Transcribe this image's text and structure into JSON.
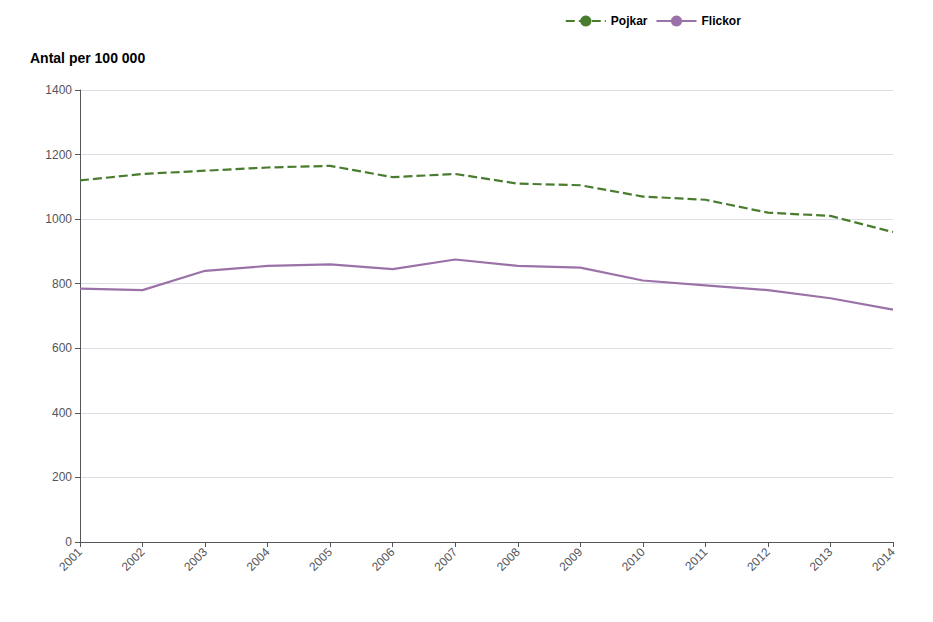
{
  "chart_data": {
    "type": "line",
    "ylabel": "Antal per 100 000",
    "x": [
      2001,
      2002,
      2003,
      2004,
      2005,
      2006,
      2007,
      2008,
      2009,
      2010,
      2011,
      2012,
      2013,
      2014
    ],
    "series": [
      {
        "name": "Pojkar",
        "color": "#4a7c2f",
        "line_style": "dashed",
        "values": [
          1120,
          1140,
          1150,
          1160,
          1165,
          1130,
          1140,
          1110,
          1105,
          1070,
          1060,
          1020,
          1010,
          960
        ]
      },
      {
        "name": "Flickor",
        "color": "#9b72a8",
        "line_style": "solid",
        "values": [
          785,
          780,
          840,
          855,
          860,
          845,
          875,
          855,
          850,
          810,
          795,
          780,
          755,
          720
        ]
      }
    ],
    "xlim": [
      2001,
      2014
    ],
    "xticks": [
      2001,
      2002,
      2003,
      2004,
      2005,
      2006,
      2007,
      2008,
      2009,
      2010,
      2011,
      2012,
      2013,
      2014
    ],
    "ylim": [
      0,
      1400
    ],
    "yticks": [
      0,
      200,
      400,
      600,
      800,
      1000,
      1200,
      1400
    ],
    "grid": true,
    "legend": "top"
  }
}
